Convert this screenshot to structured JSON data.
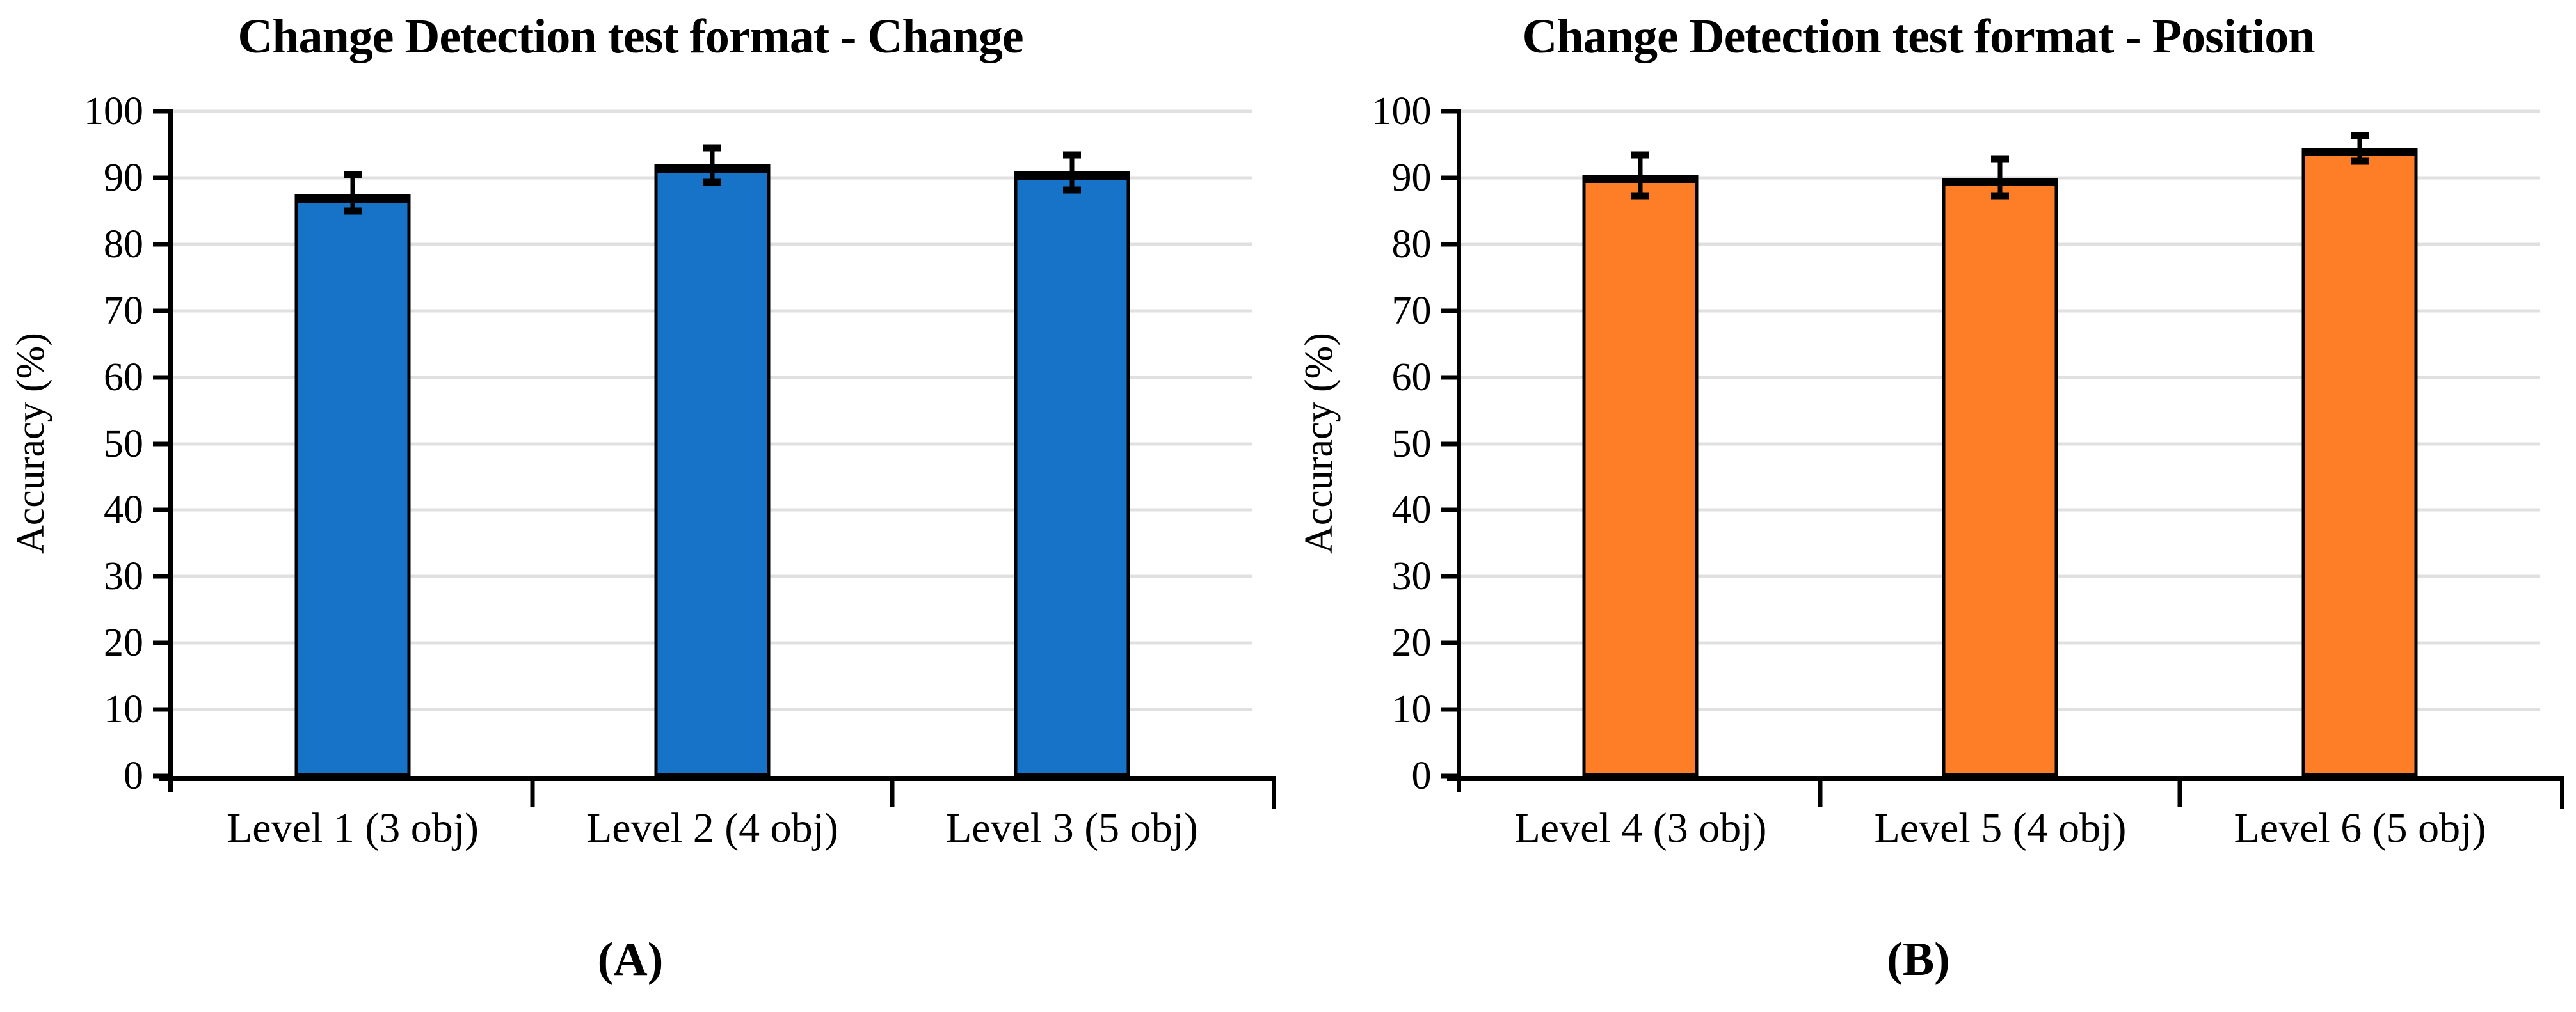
{
  "page": {
    "background": "#FFFFFF"
  },
  "chart_data": [
    {
      "type": "bar",
      "panel": "A",
      "caption": "(A)",
      "title": "Change Detection test format - Change",
      "ylabel": "Accuracy (%)",
      "ylim": [
        0,
        100
      ],
      "ytick_step": 10,
      "yticks": [
        0,
        10,
        20,
        30,
        40,
        50,
        60,
        70,
        80,
        90,
        100
      ],
      "categories": [
        "Level 1 (3 obj)",
        "Level 2 (4 obj)",
        "Level 3 (5 obj)"
      ],
      "values": [
        87.5,
        92.0,
        91.0
      ],
      "error_low": [
        85.0,
        89.3,
        88.2
      ],
      "error_high": [
        90.5,
        94.5,
        93.5
      ],
      "bar_color": "#1773C8",
      "bar_border_color": "#000000",
      "gridline_color": "#E0E0E0",
      "axis_color": "#000000",
      "grid": true,
      "legend": "none"
    },
    {
      "type": "bar",
      "panel": "B",
      "caption": "(B)",
      "title": "Change Detection test format - Position",
      "ylabel": "Accuracy (%)",
      "ylim": [
        0,
        100
      ],
      "ytick_step": 10,
      "yticks": [
        0,
        10,
        20,
        30,
        40,
        50,
        60,
        70,
        80,
        90,
        100
      ],
      "categories": [
        "Level 4 (3 obj)",
        "Level 5 (4 obj)",
        "Level 6 (5 obj)"
      ],
      "values": [
        90.5,
        90.0,
        94.5
      ],
      "error_low": [
        87.3,
        87.3,
        92.5
      ],
      "error_high": [
        93.5,
        92.8,
        96.3
      ],
      "bar_color": "#FD7E26",
      "bar_border_color": "#000000",
      "gridline_color": "#E0E0E0",
      "axis_color": "#000000",
      "grid": true,
      "legend": "none"
    }
  ]
}
